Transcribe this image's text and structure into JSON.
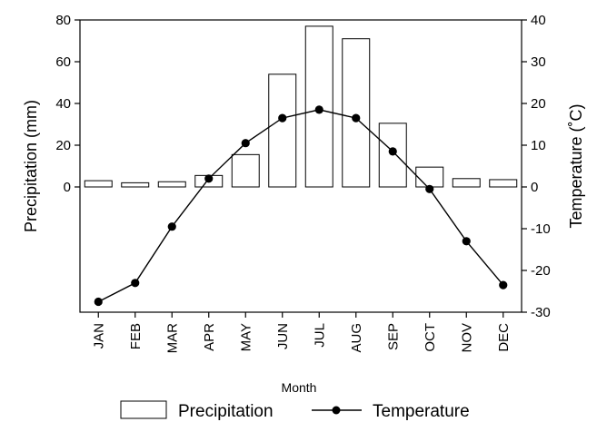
{
  "chart_data": {
    "type": "bar+line",
    "categories": [
      "JAN",
      "FEB",
      "MAR",
      "APR",
      "MAY",
      "JUN",
      "JUL",
      "AUG",
      "SEP",
      "OCT",
      "NOV",
      "DEC"
    ],
    "series": [
      {
        "name": "Precipitation",
        "type": "bar",
        "axis": "left",
        "values": [
          3,
          2,
          2.5,
          5.5,
          15.5,
          54,
          77,
          71,
          30.5,
          9.5,
          4,
          3.5
        ]
      },
      {
        "name": "Temperature",
        "type": "line",
        "axis": "right",
        "values": [
          -27.5,
          -23,
          -9.5,
          2,
          10.5,
          16.5,
          18.5,
          16.5,
          8.5,
          -0.5,
          -13,
          -23.5
        ]
      }
    ],
    "xlabel": "Month",
    "ylabel_left": "Precipitation (mm)",
    "ylabel_right": "Temperature (˚C)",
    "left_ticks": [
      0,
      20,
      40,
      60,
      80
    ],
    "right_ticks": [
      40,
      30,
      20,
      10,
      0,
      -10,
      -20,
      -30
    ],
    "ylim_right": [
      -30,
      40
    ],
    "ylim_left_equivalent": [
      -60,
      80
    ],
    "legend": {
      "placement": "bottom",
      "entries": [
        "Precipitation",
        "Temperature"
      ]
    },
    "grid": false
  }
}
